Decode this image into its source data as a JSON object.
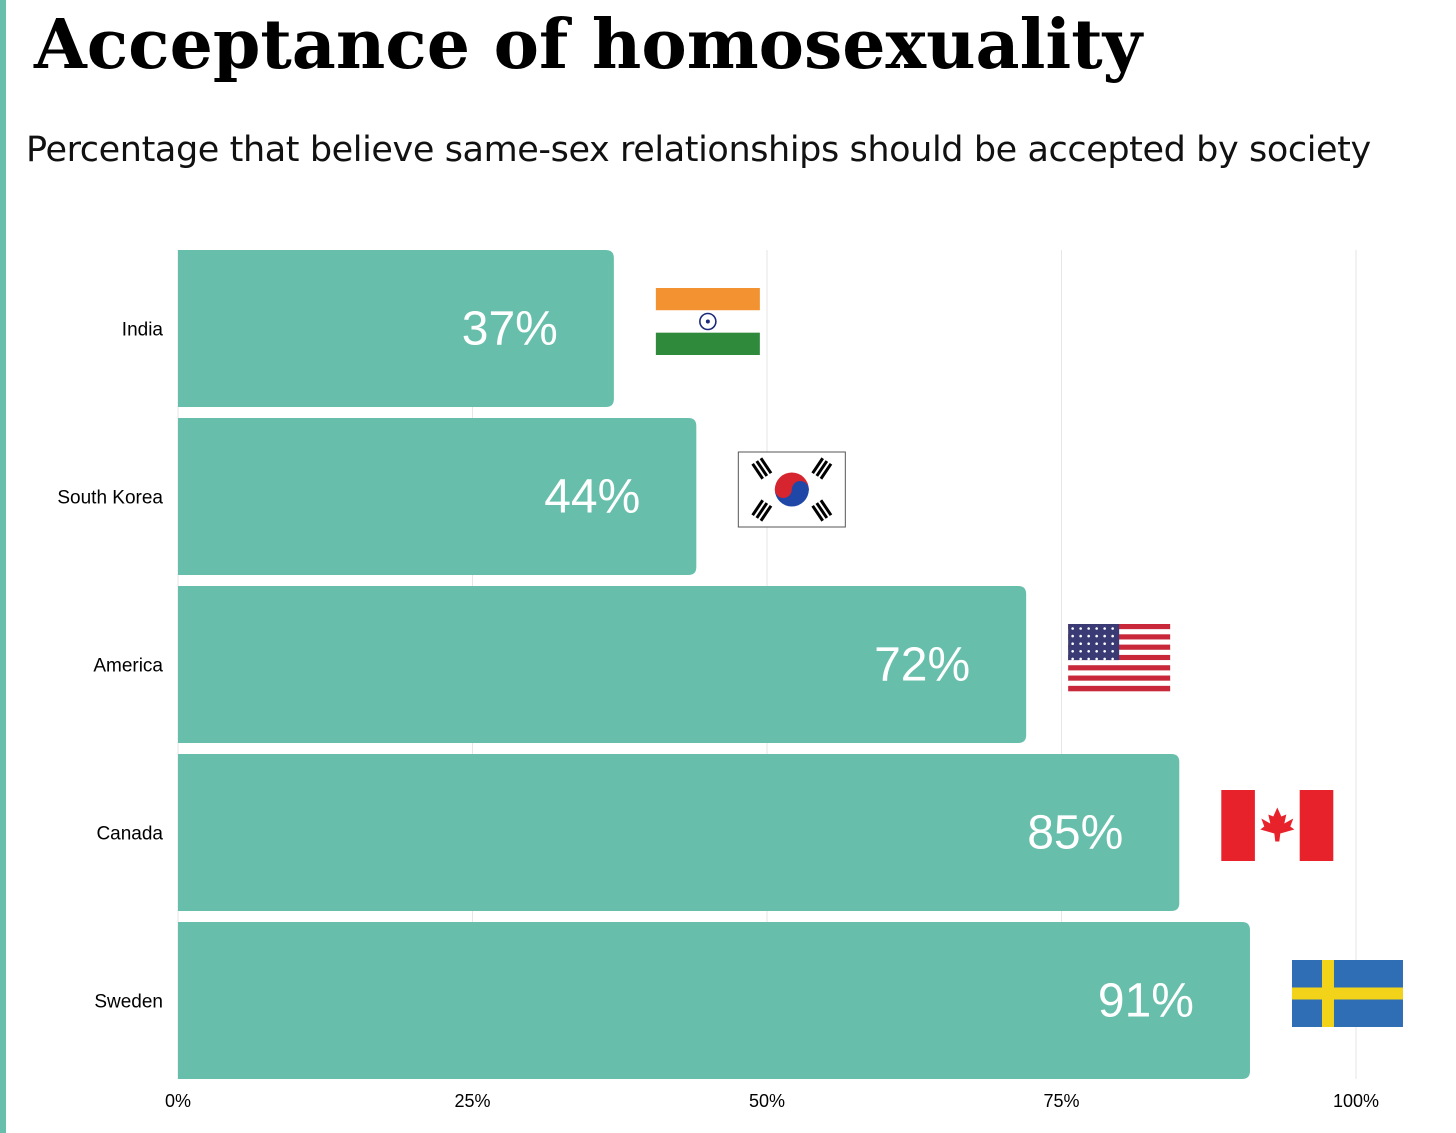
{
  "title": "Acceptance of homosexuality",
  "subtitle": "Percentage that believe same-sex relationships should be accepted by society",
  "colors": {
    "bar": "#67bfab",
    "accent": "#67bfab",
    "grid": "#e6e6e6"
  },
  "chart_data": {
    "type": "bar",
    "orientation": "horizontal",
    "title": "Acceptance of homosexuality",
    "subtitle": "Percentage that believe same-sex relationships should be accepted by society",
    "categories": [
      "India",
      "South Korea",
      "America",
      "Canada",
      "Sweden"
    ],
    "values": [
      37,
      44,
      72,
      85,
      91
    ],
    "value_labels": [
      "37%",
      "44%",
      "72%",
      "85%",
      "91%"
    ],
    "flags": [
      "india-flag",
      "south-korea-flag",
      "usa-flag",
      "canada-flag",
      "sweden-flag"
    ],
    "xlim": [
      0,
      100
    ],
    "xticks": [
      0,
      25,
      50,
      75,
      100
    ],
    "xtick_labels": [
      "0%",
      "25%",
      "50%",
      "75%",
      "100%"
    ],
    "grid": true
  }
}
